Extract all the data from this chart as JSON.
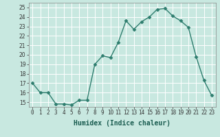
{
  "x": [
    0,
    1,
    2,
    3,
    4,
    5,
    6,
    7,
    8,
    9,
    10,
    11,
    12,
    13,
    14,
    15,
    16,
    17,
    18,
    19,
    20,
    21,
    22,
    23
  ],
  "y": [
    17,
    16,
    16,
    14.8,
    14.8,
    14.7,
    15.2,
    15.2,
    19,
    19.9,
    19.7,
    21.3,
    23.6,
    22.7,
    23.5,
    24.0,
    24.8,
    24.9,
    24.1,
    23.6,
    22.9,
    19.8,
    17.3,
    15.7
  ],
  "line_color": "#2e7d6e",
  "marker": "D",
  "markersize": 2.5,
  "linewidth": 1.0,
  "xlabel": "Humidex (Indice chaleur)",
  "xlabel_fontsize": 7,
  "xlim": [
    -0.5,
    23.5
  ],
  "ylim": [
    14.5,
    25.5
  ],
  "yticks": [
    15,
    16,
    17,
    18,
    19,
    20,
    21,
    22,
    23,
    24,
    25
  ],
  "xticks": [
    0,
    1,
    2,
    3,
    4,
    5,
    6,
    7,
    8,
    9,
    10,
    11,
    12,
    13,
    14,
    15,
    16,
    17,
    18,
    19,
    20,
    21,
    22,
    23
  ],
  "xtick_labels": [
    "0",
    "1",
    "2",
    "3",
    "4",
    "5",
    "6",
    "7",
    "8",
    "9",
    "10",
    "11",
    "12",
    "13",
    "14",
    "15",
    "16",
    "17",
    "18",
    "19",
    "20",
    "21",
    "22",
    "23"
  ],
  "bg_color": "#c8e8e0",
  "plot_bg_color": "#cde8e2",
  "grid_color": "#b0d0cc",
  "tick_fontsize": 5.5,
  "figsize": [
    3.2,
    2.0
  ],
  "dpi": 100
}
